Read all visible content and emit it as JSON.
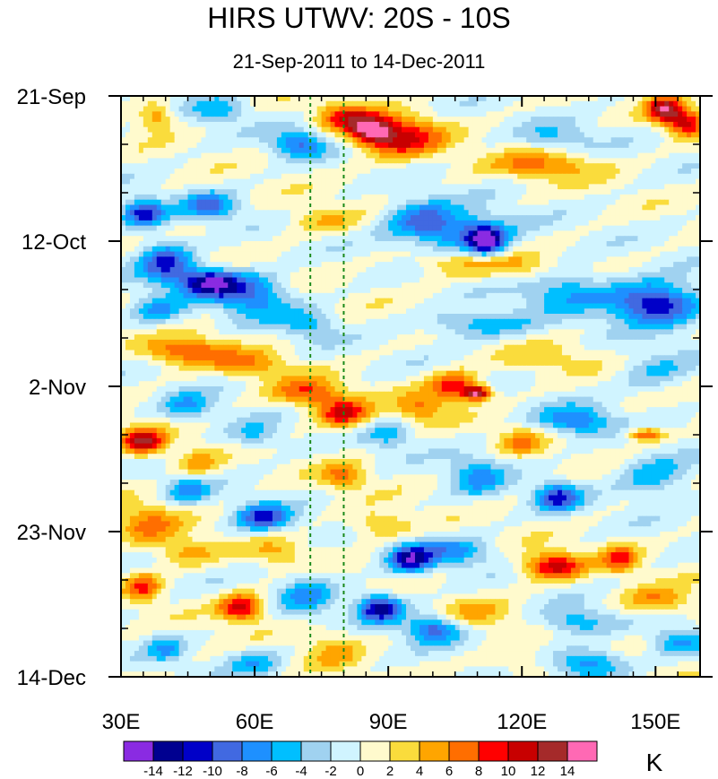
{
  "chart_data": {
    "type": "heatmap",
    "title": "HIRS UTWV: 20S - 10S",
    "subtitle": "21-Sep-2011 to 14-Dec-2011",
    "xlabel": "",
    "ylabel": "",
    "x_range": [
      30,
      160
    ],
    "x_ticks": [
      {
        "value": 30,
        "label": "30E"
      },
      {
        "value": 60,
        "label": "60E"
      },
      {
        "value": 90,
        "label": "90E"
      },
      {
        "value": 120,
        "label": "120E"
      },
      {
        "value": 150,
        "label": "150E"
      }
    ],
    "y_range_days": [
      0,
      84
    ],
    "y_ticks": [
      {
        "day": 0,
        "label": "21-Sep"
      },
      {
        "day": 21,
        "label": "12-Oct"
      },
      {
        "day": 42,
        "label": "2-Nov"
      },
      {
        "day": 63,
        "label": "23-Nov"
      },
      {
        "day": 84,
        "label": "14-Dec"
      }
    ],
    "reference_lines_lon": [
      72.5,
      80
    ],
    "reference_line_color": "#1a8a1a",
    "units_label": "K",
    "colorbar": {
      "labels": [
        "-14",
        "-12",
        "-10",
        "-8",
        "-6",
        "-4",
        "-2",
        "0",
        "2",
        "4",
        "6",
        "8",
        "10",
        "12",
        "14"
      ],
      "colors": [
        "#8a2be2",
        "#000090",
        "#0000c8",
        "#4169e1",
        "#1e90ff",
        "#00bfff",
        "#a0d2f0",
        "#d0f4ff",
        "#fffacd",
        "#fadc3c",
        "#ffa500",
        "#ff6e00",
        "#ff0000",
        "#c80000",
        "#a52a2a",
        "#ff69b4"
      ]
    },
    "anomaly_features": [
      {
        "lon": 86,
        "day": 5,
        "value": 11,
        "rlon": 5,
        "rday": 2
      },
      {
        "lon": 93,
        "day": 6,
        "value": 10,
        "rlon": 9,
        "rday": 3
      },
      {
        "lon": 80,
        "day": 3,
        "value": 8,
        "rlon": 6,
        "rday": 2
      },
      {
        "lon": 157,
        "day": 4,
        "value": 10,
        "rlon": 4,
        "rday": 2
      },
      {
        "lon": 152,
        "day": 2,
        "value": 12,
        "rlon": 4,
        "rday": 2
      },
      {
        "lon": 125,
        "day": 10,
        "value": 6,
        "rlon": 12,
        "rday": 2
      },
      {
        "lon": 38,
        "day": 3,
        "value": 6,
        "rlon": 4,
        "rday": 2
      },
      {
        "lon": 52,
        "day": 2,
        "value": -5,
        "rlon": 6,
        "rday": 2
      },
      {
        "lon": 70,
        "day": 7,
        "value": -8,
        "rlon": 6,
        "rday": 2
      },
      {
        "lon": 128,
        "day": 6,
        "value": -4,
        "rlon": 8,
        "rday": 2
      },
      {
        "lon": 35,
        "day": 17,
        "value": -11,
        "rlon": 5,
        "rday": 2
      },
      {
        "lon": 50,
        "day": 16,
        "value": -8,
        "rlon": 6,
        "rday": 2
      },
      {
        "lon": 50,
        "day": 27,
        "value": -14,
        "rlon": 7,
        "rday": 2
      },
      {
        "lon": 40,
        "day": 24,
        "value": -10,
        "rlon": 6,
        "rday": 3
      },
      {
        "lon": 60,
        "day": 29,
        "value": -8,
        "rlon": 8,
        "rday": 3
      },
      {
        "lon": 38,
        "day": 31,
        "value": -6,
        "rlon": 6,
        "rday": 2
      },
      {
        "lon": 72,
        "day": 33,
        "value": -5,
        "rlon": 6,
        "rday": 2
      },
      {
        "lon": 97,
        "day": 18,
        "value": -8,
        "rlon": 8,
        "rday": 3
      },
      {
        "lon": 112,
        "day": 21,
        "value": -12,
        "rlon": 4,
        "rday": 2
      },
      {
        "lon": 108,
        "day": 20,
        "value": -8,
        "rlon": 10,
        "rday": 3
      },
      {
        "lon": 150,
        "day": 30,
        "value": -13,
        "rlon": 10,
        "rday": 3
      },
      {
        "lon": 130,
        "day": 28,
        "value": -6,
        "rlon": 10,
        "rday": 3
      },
      {
        "lon": 110,
        "day": 33,
        "value": -6,
        "rlon": 12,
        "rday": 2
      },
      {
        "lon": 75,
        "day": 18,
        "value": 4,
        "rlon": 8,
        "rday": 2
      },
      {
        "lon": 105,
        "day": 24,
        "value": 5,
        "rlon": 10,
        "rday": 2
      },
      {
        "lon": 120,
        "day": 25,
        "value": 4,
        "rlon": 8,
        "rday": 2
      },
      {
        "lon": 45,
        "day": 37,
        "value": 8,
        "rlon": 10,
        "rday": 2
      },
      {
        "lon": 60,
        "day": 39,
        "value": 5,
        "rlon": 8,
        "rday": 2
      },
      {
        "lon": 72,
        "day": 43,
        "value": 8,
        "rlon": 8,
        "rday": 2
      },
      {
        "lon": 80,
        "day": 46,
        "value": 10,
        "rlon": 6,
        "rday": 2
      },
      {
        "lon": 105,
        "day": 42,
        "value": 10,
        "rlon": 6,
        "rday": 2
      },
      {
        "lon": 110,
        "day": 43,
        "value": 12,
        "rlon": 3,
        "rday": 1
      },
      {
        "lon": 97,
        "day": 45,
        "value": 6,
        "rlon": 6,
        "rday": 2
      },
      {
        "lon": 35,
        "day": 50,
        "value": 12,
        "rlon": 5,
        "rday": 2
      },
      {
        "lon": 47,
        "day": 53,
        "value": 5,
        "rlon": 5,
        "rday": 2
      },
      {
        "lon": 120,
        "day": 50,
        "value": 5,
        "rlon": 5,
        "rday": 2
      },
      {
        "lon": 148,
        "day": 49,
        "value": 9,
        "rlon": 4,
        "rday": 1
      },
      {
        "lon": 80,
        "day": 55,
        "value": 6,
        "rlon": 5,
        "rday": 2
      },
      {
        "lon": 36,
        "day": 62,
        "value": 6,
        "rlon": 7,
        "rday": 3
      },
      {
        "lon": 45,
        "day": 66,
        "value": 5,
        "rlon": 7,
        "rday": 2
      },
      {
        "lon": 65,
        "day": 66,
        "value": 4,
        "rlon": 6,
        "rday": 2
      },
      {
        "lon": 88,
        "day": 62,
        "value": 5,
        "rlon": 7,
        "rday": 2
      },
      {
        "lon": 127,
        "day": 68,
        "value": 11,
        "rlon": 7,
        "rday": 2
      },
      {
        "lon": 142,
        "day": 67,
        "value": 8,
        "rlon": 4,
        "rday": 2
      },
      {
        "lon": 35,
        "day": 71,
        "value": 8,
        "rlon": 4,
        "rday": 2
      },
      {
        "lon": 57,
        "day": 74,
        "value": 11,
        "rlon": 5,
        "rday": 2
      },
      {
        "lon": 150,
        "day": 73,
        "value": 6,
        "rlon": 8,
        "rday": 2
      },
      {
        "lon": 110,
        "day": 75,
        "value": 4,
        "rlon": 8,
        "rday": 2
      },
      {
        "lon": 78,
        "day": 80,
        "value": 4,
        "rlon": 6,
        "rday": 3
      },
      {
        "lon": 45,
        "day": 45,
        "value": -6,
        "rlon": 6,
        "rday": 2
      },
      {
        "lon": 60,
        "day": 49,
        "value": -5,
        "rlon": 6,
        "rday": 2
      },
      {
        "lon": 90,
        "day": 49,
        "value": -5,
        "rlon": 5,
        "rday": 2
      },
      {
        "lon": 132,
        "day": 47,
        "value": -8,
        "rlon": 8,
        "rday": 2
      },
      {
        "lon": 110,
        "day": 55,
        "value": -6,
        "rlon": 6,
        "rday": 3
      },
      {
        "lon": 128,
        "day": 58,
        "value": -10,
        "rlon": 5,
        "rday": 2
      },
      {
        "lon": 150,
        "day": 55,
        "value": -6,
        "rlon": 8,
        "rday": 3
      },
      {
        "lon": 62,
        "day": 61,
        "value": -10,
        "rlon": 6,
        "rday": 2
      },
      {
        "lon": 45,
        "day": 57,
        "value": -6,
        "rlon": 5,
        "rday": 2
      },
      {
        "lon": 95,
        "day": 67,
        "value": -12,
        "rlon": 5,
        "rday": 2
      },
      {
        "lon": 105,
        "day": 66,
        "value": -6,
        "rlon": 8,
        "rday": 2
      },
      {
        "lon": 88,
        "day": 74,
        "value": -13,
        "rlon": 5,
        "rday": 2
      },
      {
        "lon": 100,
        "day": 77,
        "value": -9,
        "rlon": 6,
        "rday": 2
      },
      {
        "lon": 72,
        "day": 72,
        "value": -6,
        "rlon": 6,
        "rday": 3
      },
      {
        "lon": 132,
        "day": 76,
        "value": -6,
        "rlon": 8,
        "rday": 2
      },
      {
        "lon": 135,
        "day": 82,
        "value": -8,
        "rlon": 8,
        "rday": 2
      },
      {
        "lon": 155,
        "day": 79,
        "value": -6,
        "rlon": 6,
        "rday": 2
      },
      {
        "lon": 60,
        "day": 82,
        "value": -5,
        "rlon": 6,
        "rday": 2
      },
      {
        "lon": 40,
        "day": 80,
        "value": -5,
        "rlon": 4,
        "rday": 2
      },
      {
        "lon": 150,
        "day": 40,
        "value": -4,
        "rlon": 8,
        "rday": 3
      },
      {
        "lon": 125,
        "day": 38,
        "value": 3,
        "rlon": 10,
        "rday": 2
      },
      {
        "lon": 120,
        "day": 82,
        "value": 3,
        "rlon": 8,
        "rday": 2
      }
    ]
  }
}
